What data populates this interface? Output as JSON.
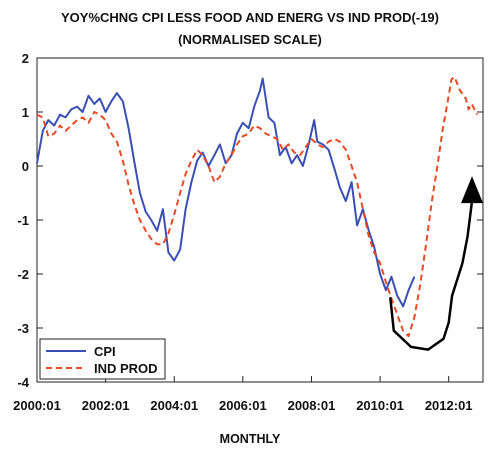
{
  "chart_data": {
    "type": "line",
    "title": "YOY%CHNG CPI LESS FOOD AND ENERG VS IND PROD(-19)",
    "subtitle": "(NORMALISED SCALE)",
    "xlabel": "MONTHLY",
    "ylabel": "",
    "xlim": [
      2000.0,
      2013.0
    ],
    "ylim": [
      -4,
      2
    ],
    "yticks": [
      2,
      1,
      0,
      -1,
      -2,
      -3,
      -4
    ],
    "xticks": [
      {
        "value": 2000.0,
        "label": "2000:01"
      },
      {
        "value": 2002.0,
        "label": "2002:01"
      },
      {
        "value": 2004.0,
        "label": "2004:01"
      },
      {
        "value": 2006.0,
        "label": "2006:01"
      },
      {
        "value": 2008.0,
        "label": "2008:01"
      },
      {
        "value": 2010.0,
        "label": "2010:01"
      },
      {
        "value": 2012.0,
        "label": "2012:01"
      }
    ],
    "grid": false,
    "legend_position": "bottom-left",
    "series": [
      {
        "name": "CPI",
        "color": "#3a4fb5",
        "style": "solid",
        "points": [
          [
            2000.0,
            0.05
          ],
          [
            2000.17,
            0.65
          ],
          [
            2000.33,
            0.85
          ],
          [
            2000.5,
            0.75
          ],
          [
            2000.67,
            0.95
          ],
          [
            2000.83,
            0.9
          ],
          [
            2001.0,
            1.05
          ],
          [
            2001.17,
            1.1
          ],
          [
            2001.33,
            1.0
          ],
          [
            2001.5,
            1.3
          ],
          [
            2001.67,
            1.15
          ],
          [
            2001.83,
            1.25
          ],
          [
            2002.0,
            1.0
          ],
          [
            2002.17,
            1.2
          ],
          [
            2002.33,
            1.35
          ],
          [
            2002.5,
            1.2
          ],
          [
            2002.67,
            0.7
          ],
          [
            2002.83,
            0.1
          ],
          [
            2003.0,
            -0.5
          ],
          [
            2003.17,
            -0.85
          ],
          [
            2003.33,
            -1.0
          ],
          [
            2003.5,
            -1.2
          ],
          [
            2003.67,
            -0.8
          ],
          [
            2003.83,
            -1.6
          ],
          [
            2004.0,
            -1.75
          ],
          [
            2004.17,
            -1.55
          ],
          [
            2004.33,
            -0.8
          ],
          [
            2004.5,
            -0.3
          ],
          [
            2004.67,
            0.1
          ],
          [
            2004.83,
            0.25
          ],
          [
            2005.0,
            0.0
          ],
          [
            2005.17,
            0.2
          ],
          [
            2005.33,
            0.4
          ],
          [
            2005.5,
            0.05
          ],
          [
            2005.67,
            0.2
          ],
          [
            2005.83,
            0.6
          ],
          [
            2006.0,
            0.8
          ],
          [
            2006.17,
            0.7
          ],
          [
            2006.33,
            1.1
          ],
          [
            2006.5,
            1.4
          ],
          [
            2006.58,
            1.62
          ],
          [
            2006.75,
            0.9
          ],
          [
            2006.92,
            0.8
          ],
          [
            2007.08,
            0.2
          ],
          [
            2007.25,
            0.35
          ],
          [
            2007.42,
            0.05
          ],
          [
            2007.58,
            0.2
          ],
          [
            2007.75,
            0.0
          ],
          [
            2007.92,
            0.4
          ],
          [
            2008.08,
            0.85
          ],
          [
            2008.17,
            0.45
          ],
          [
            2008.33,
            0.4
          ],
          [
            2008.5,
            0.3
          ],
          [
            2008.67,
            -0.05
          ],
          [
            2008.83,
            -0.4
          ],
          [
            2009.0,
            -0.65
          ],
          [
            2009.17,
            -0.3
          ],
          [
            2009.33,
            -1.1
          ],
          [
            2009.5,
            -0.8
          ],
          [
            2009.67,
            -1.2
          ],
          [
            2009.83,
            -1.5
          ],
          [
            2010.0,
            -2.0
          ],
          [
            2010.17,
            -2.3
          ],
          [
            2010.33,
            -2.05
          ],
          [
            2010.5,
            -2.4
          ],
          [
            2010.67,
            -2.6
          ],
          [
            2010.83,
            -2.3
          ],
          [
            2011.0,
            -2.05
          ]
        ]
      },
      {
        "name": "IND PROD",
        "color": "#e84a25",
        "style": "dashed",
        "points": [
          [
            2000.0,
            0.95
          ],
          [
            2000.17,
            0.9
          ],
          [
            2000.33,
            0.55
          ],
          [
            2000.5,
            0.6
          ],
          [
            2000.67,
            0.75
          ],
          [
            2000.83,
            0.65
          ],
          [
            2001.0,
            0.75
          ],
          [
            2001.17,
            0.85
          ],
          [
            2001.33,
            0.9
          ],
          [
            2001.5,
            0.8
          ],
          [
            2001.67,
            1.0
          ],
          [
            2001.83,
            0.95
          ],
          [
            2002.0,
            0.85
          ],
          [
            2002.17,
            0.6
          ],
          [
            2002.33,
            0.45
          ],
          [
            2002.5,
            0.1
          ],
          [
            2002.67,
            -0.35
          ],
          [
            2002.83,
            -0.7
          ],
          [
            2003.0,
            -1.0
          ],
          [
            2003.17,
            -1.2
          ],
          [
            2003.33,
            -1.35
          ],
          [
            2003.5,
            -1.45
          ],
          [
            2003.67,
            -1.45
          ],
          [
            2003.83,
            -1.25
          ],
          [
            2004.0,
            -0.9
          ],
          [
            2004.17,
            -0.5
          ],
          [
            2004.33,
            -0.15
          ],
          [
            2004.5,
            0.1
          ],
          [
            2004.67,
            0.3
          ],
          [
            2004.83,
            0.2
          ],
          [
            2005.0,
            0.0
          ],
          [
            2005.17,
            -0.3
          ],
          [
            2005.33,
            -0.2
          ],
          [
            2005.5,
            0.05
          ],
          [
            2005.67,
            0.2
          ],
          [
            2005.83,
            0.4
          ],
          [
            2006.0,
            0.55
          ],
          [
            2006.17,
            0.6
          ],
          [
            2006.33,
            0.75
          ],
          [
            2006.5,
            0.7
          ],
          [
            2006.67,
            0.6
          ],
          [
            2006.83,
            0.55
          ],
          [
            2007.0,
            0.5
          ],
          [
            2007.17,
            0.3
          ],
          [
            2007.33,
            0.4
          ],
          [
            2007.5,
            0.25
          ],
          [
            2007.67,
            0.2
          ],
          [
            2007.83,
            0.35
          ],
          [
            2008.0,
            0.5
          ],
          [
            2008.17,
            0.4
          ],
          [
            2008.33,
            0.35
          ],
          [
            2008.5,
            0.45
          ],
          [
            2008.67,
            0.5
          ],
          [
            2008.83,
            0.45
          ],
          [
            2009.0,
            0.3
          ],
          [
            2009.17,
            0.0
          ],
          [
            2009.33,
            -0.3
          ],
          [
            2009.5,
            -0.8
          ],
          [
            2009.67,
            -1.3
          ],
          [
            2009.83,
            -1.6
          ],
          [
            2010.0,
            -1.8
          ],
          [
            2010.17,
            -2.15
          ],
          [
            2010.33,
            -2.45
          ],
          [
            2010.5,
            -2.75
          ],
          [
            2010.67,
            -3.05
          ],
          [
            2010.83,
            -3.15
          ],
          [
            2011.0,
            -2.8
          ],
          [
            2011.17,
            -2.2
          ],
          [
            2011.33,
            -1.5
          ],
          [
            2011.5,
            -0.7
          ],
          [
            2011.67,
            0.0
          ],
          [
            2011.83,
            0.7
          ],
          [
            2012.0,
            1.3
          ],
          [
            2012.08,
            1.6
          ],
          [
            2012.17,
            1.65
          ],
          [
            2012.33,
            1.4
          ],
          [
            2012.5,
            1.25
          ],
          [
            2012.58,
            1.05
          ],
          [
            2012.67,
            1.15
          ],
          [
            2012.83,
            0.95
          ]
        ]
      }
    ],
    "annotations": [
      {
        "type": "arrow",
        "color": "#000000",
        "points": [
          [
            2010.3,
            -2.45
          ],
          [
            2010.4,
            -3.05
          ],
          [
            2010.9,
            -3.35
          ],
          [
            2011.4,
            -3.4
          ],
          [
            2011.85,
            -3.2
          ],
          [
            2012.0,
            -2.9
          ],
          [
            2012.1,
            -2.4
          ],
          [
            2012.4,
            -1.8
          ],
          [
            2012.55,
            -1.3
          ],
          [
            2012.68,
            -0.65
          ]
        ],
        "arrowhead_at": [
          2012.68,
          -0.45
        ]
      }
    ]
  }
}
